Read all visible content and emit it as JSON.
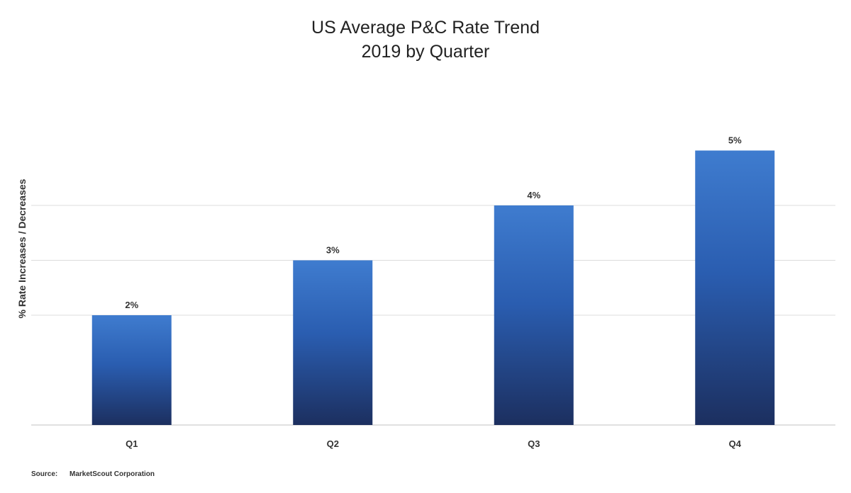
{
  "chart_data": {
    "type": "bar",
    "title": "US Average P&C Rate Trend",
    "subtitle": "2019 by Quarter",
    "xlabel": "",
    "ylabel": "% Rate Increases / Decreases",
    "categories": [
      "Q1",
      "Q2",
      "Q3",
      "Q4"
    ],
    "values": [
      2,
      3,
      4,
      5
    ],
    "data_labels": [
      "2%",
      "3%",
      "4%",
      "5%"
    ],
    "ylim": [
      0,
      5.5
    ],
    "gridlines": [
      2,
      3,
      4
    ],
    "grid": true,
    "legend": "none",
    "bar_color_top": "#3f7ccf",
    "bar_color_bottom": "#1c2f5f"
  },
  "source": {
    "label": "Source:",
    "text": "MarketScout Corporation"
  }
}
